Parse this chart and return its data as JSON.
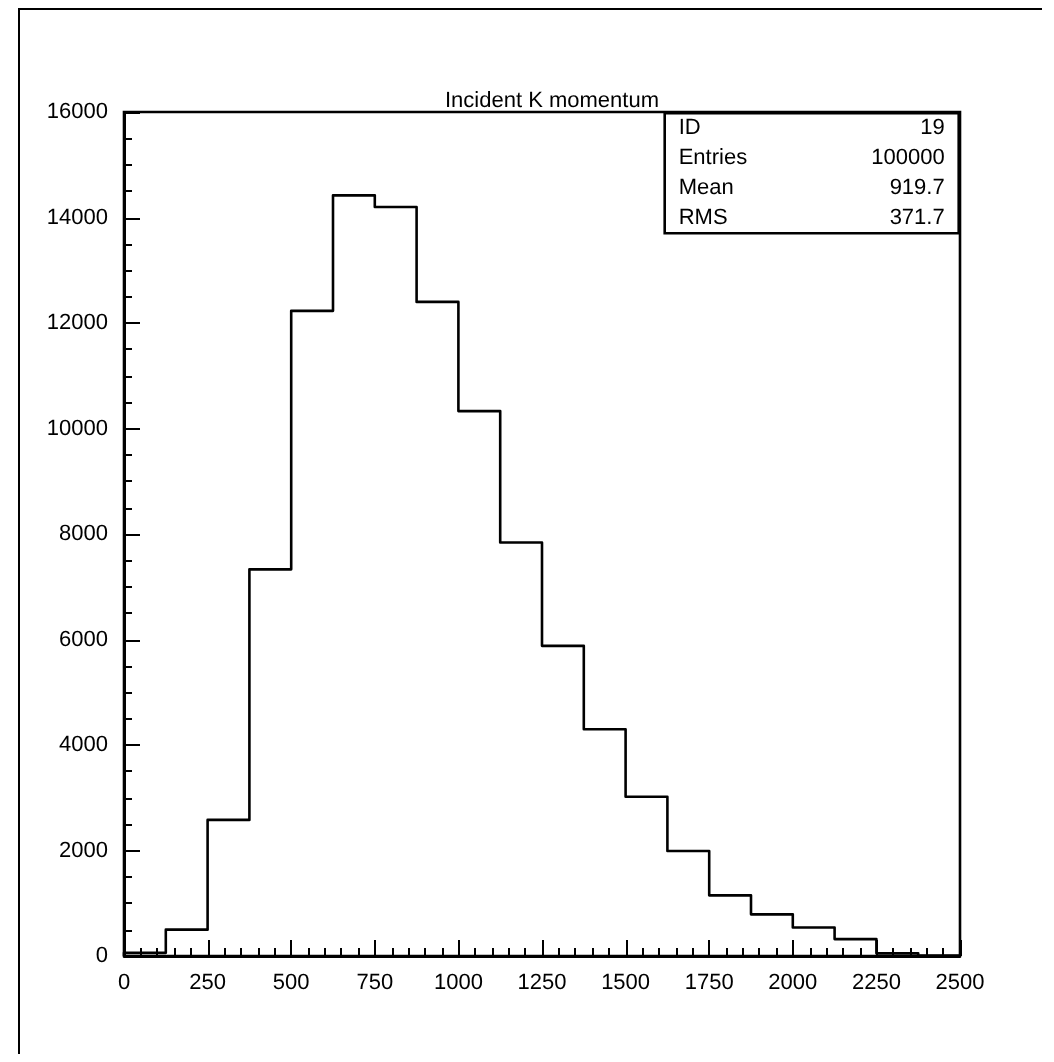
{
  "chart_data": {
    "type": "histogram",
    "title": "Incident K momentum",
    "bins": [
      0,
      125,
      250,
      375,
      500,
      625,
      750,
      875,
      1000,
      1125,
      1250,
      1375,
      1500,
      1625,
      1750,
      1875,
      2000,
      2125,
      2250,
      2375,
      2500
    ],
    "values": [
      60,
      500,
      2580,
      7330,
      12230,
      14420,
      14200,
      12400,
      10330,
      7840,
      5880,
      4300,
      3020,
      1990,
      1150,
      790,
      540,
      320,
      50,
      10
    ],
    "color": "#000000",
    "xlim": [
      0,
      2500
    ],
    "xticks": [
      0,
      250,
      500,
      750,
      1000,
      1250,
      1500,
      1750,
      2000,
      2250,
      2500
    ],
    "ylim": [
      0,
      16000
    ],
    "yticks": [
      0,
      2000,
      4000,
      6000,
      8000,
      10000,
      12000,
      14000,
      16000
    ],
    "annotations": [
      "ID",
      "19",
      "Entries",
      "100000",
      "Mean",
      "919.7",
      "RMS",
      "371.7"
    ],
    "grid": false
  }
}
